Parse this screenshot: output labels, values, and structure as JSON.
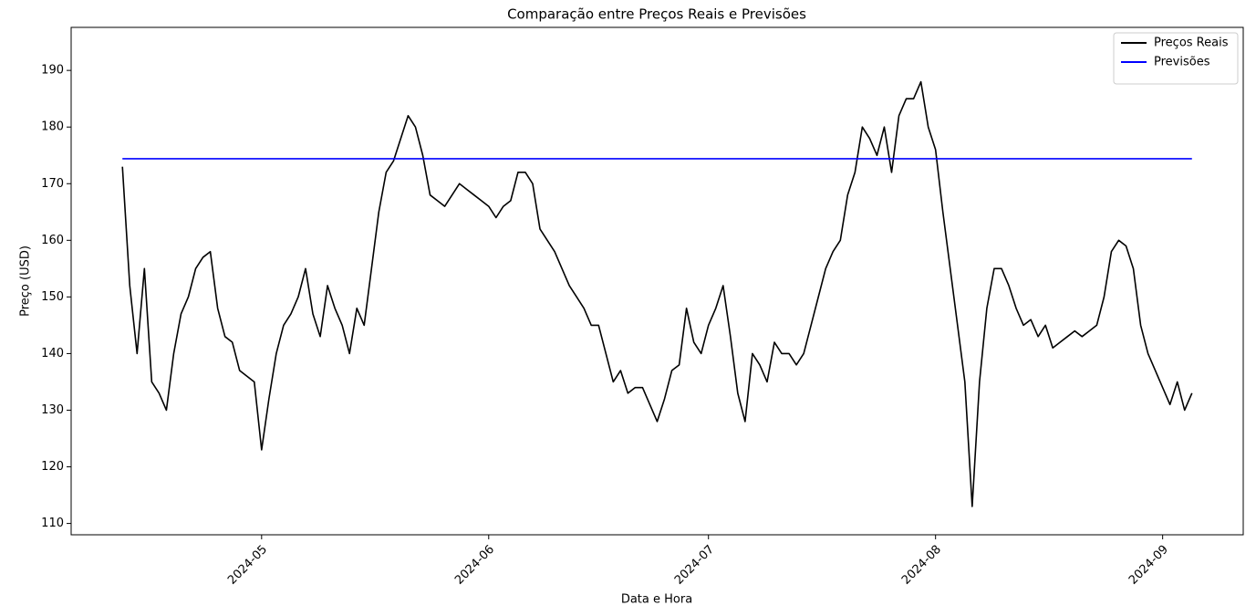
{
  "chart_data": {
    "type": "line",
    "title": "Comparação entre Preços Reais e Previsões",
    "x_label": "Data e Hora",
    "y_label": "Preço (USD)",
    "legend_position": "upper right",
    "grid": false,
    "xlim": [
      -7,
      153
    ],
    "xticks": [
      {
        "value": 19,
        "label": "2024-05"
      },
      {
        "value": 50,
        "label": "2024-06"
      },
      {
        "value": 80,
        "label": "2024-07"
      },
      {
        "value": 111,
        "label": "2024-08"
      },
      {
        "value": 142,
        "label": "2024-09"
      }
    ],
    "ylim": [
      108,
      197.6
    ],
    "yticks": [
      110,
      120,
      130,
      140,
      150,
      160,
      170,
      180,
      190
    ],
    "series": [
      {
        "name": "Preços Reais",
        "color": "#000000",
        "values": [
          173,
          152,
          140,
          155,
          135,
          133,
          130,
          140,
          147,
          150,
          155,
          157,
          158,
          148,
          143,
          142,
          137,
          136,
          135,
          123,
          132,
          140,
          145,
          147,
          150,
          155,
          147,
          143,
          152,
          148,
          145,
          140,
          148,
          145,
          155,
          165,
          172,
          174,
          178,
          182,
          180,
          175,
          168,
          167,
          166,
          168,
          170,
          169,
          168,
          167,
          166,
          164,
          166,
          167,
          172,
          172,
          170,
          162,
          160,
          158,
          155,
          152,
          150,
          148,
          145,
          145,
          140,
          135,
          137,
          133,
          134,
          134,
          131,
          128,
          132,
          137,
          138,
          148,
          142,
          140,
          145,
          148,
          152,
          143,
          133,
          128,
          140,
          138,
          135,
          142,
          140,
          140,
          138,
          140,
          145,
          150,
          155,
          158,
          160,
          168,
          172,
          180,
          178,
          175,
          180,
          172,
          182,
          185,
          185,
          188,
          180,
          176,
          165,
          155,
          145,
          135,
          113,
          135,
          148,
          155,
          155,
          152,
          148,
          145,
          146,
          143,
          145,
          141,
          142,
          143,
          144,
          143,
          144,
          145,
          150,
          158,
          160,
          159,
          155,
          145,
          140,
          137,
          134,
          131,
          135,
          130,
          133
        ]
      },
      {
        "name": "Previsões",
        "color": "#0000ff",
        "x": [
          0,
          146
        ],
        "values": [
          174.4,
          174.4
        ]
      }
    ]
  }
}
